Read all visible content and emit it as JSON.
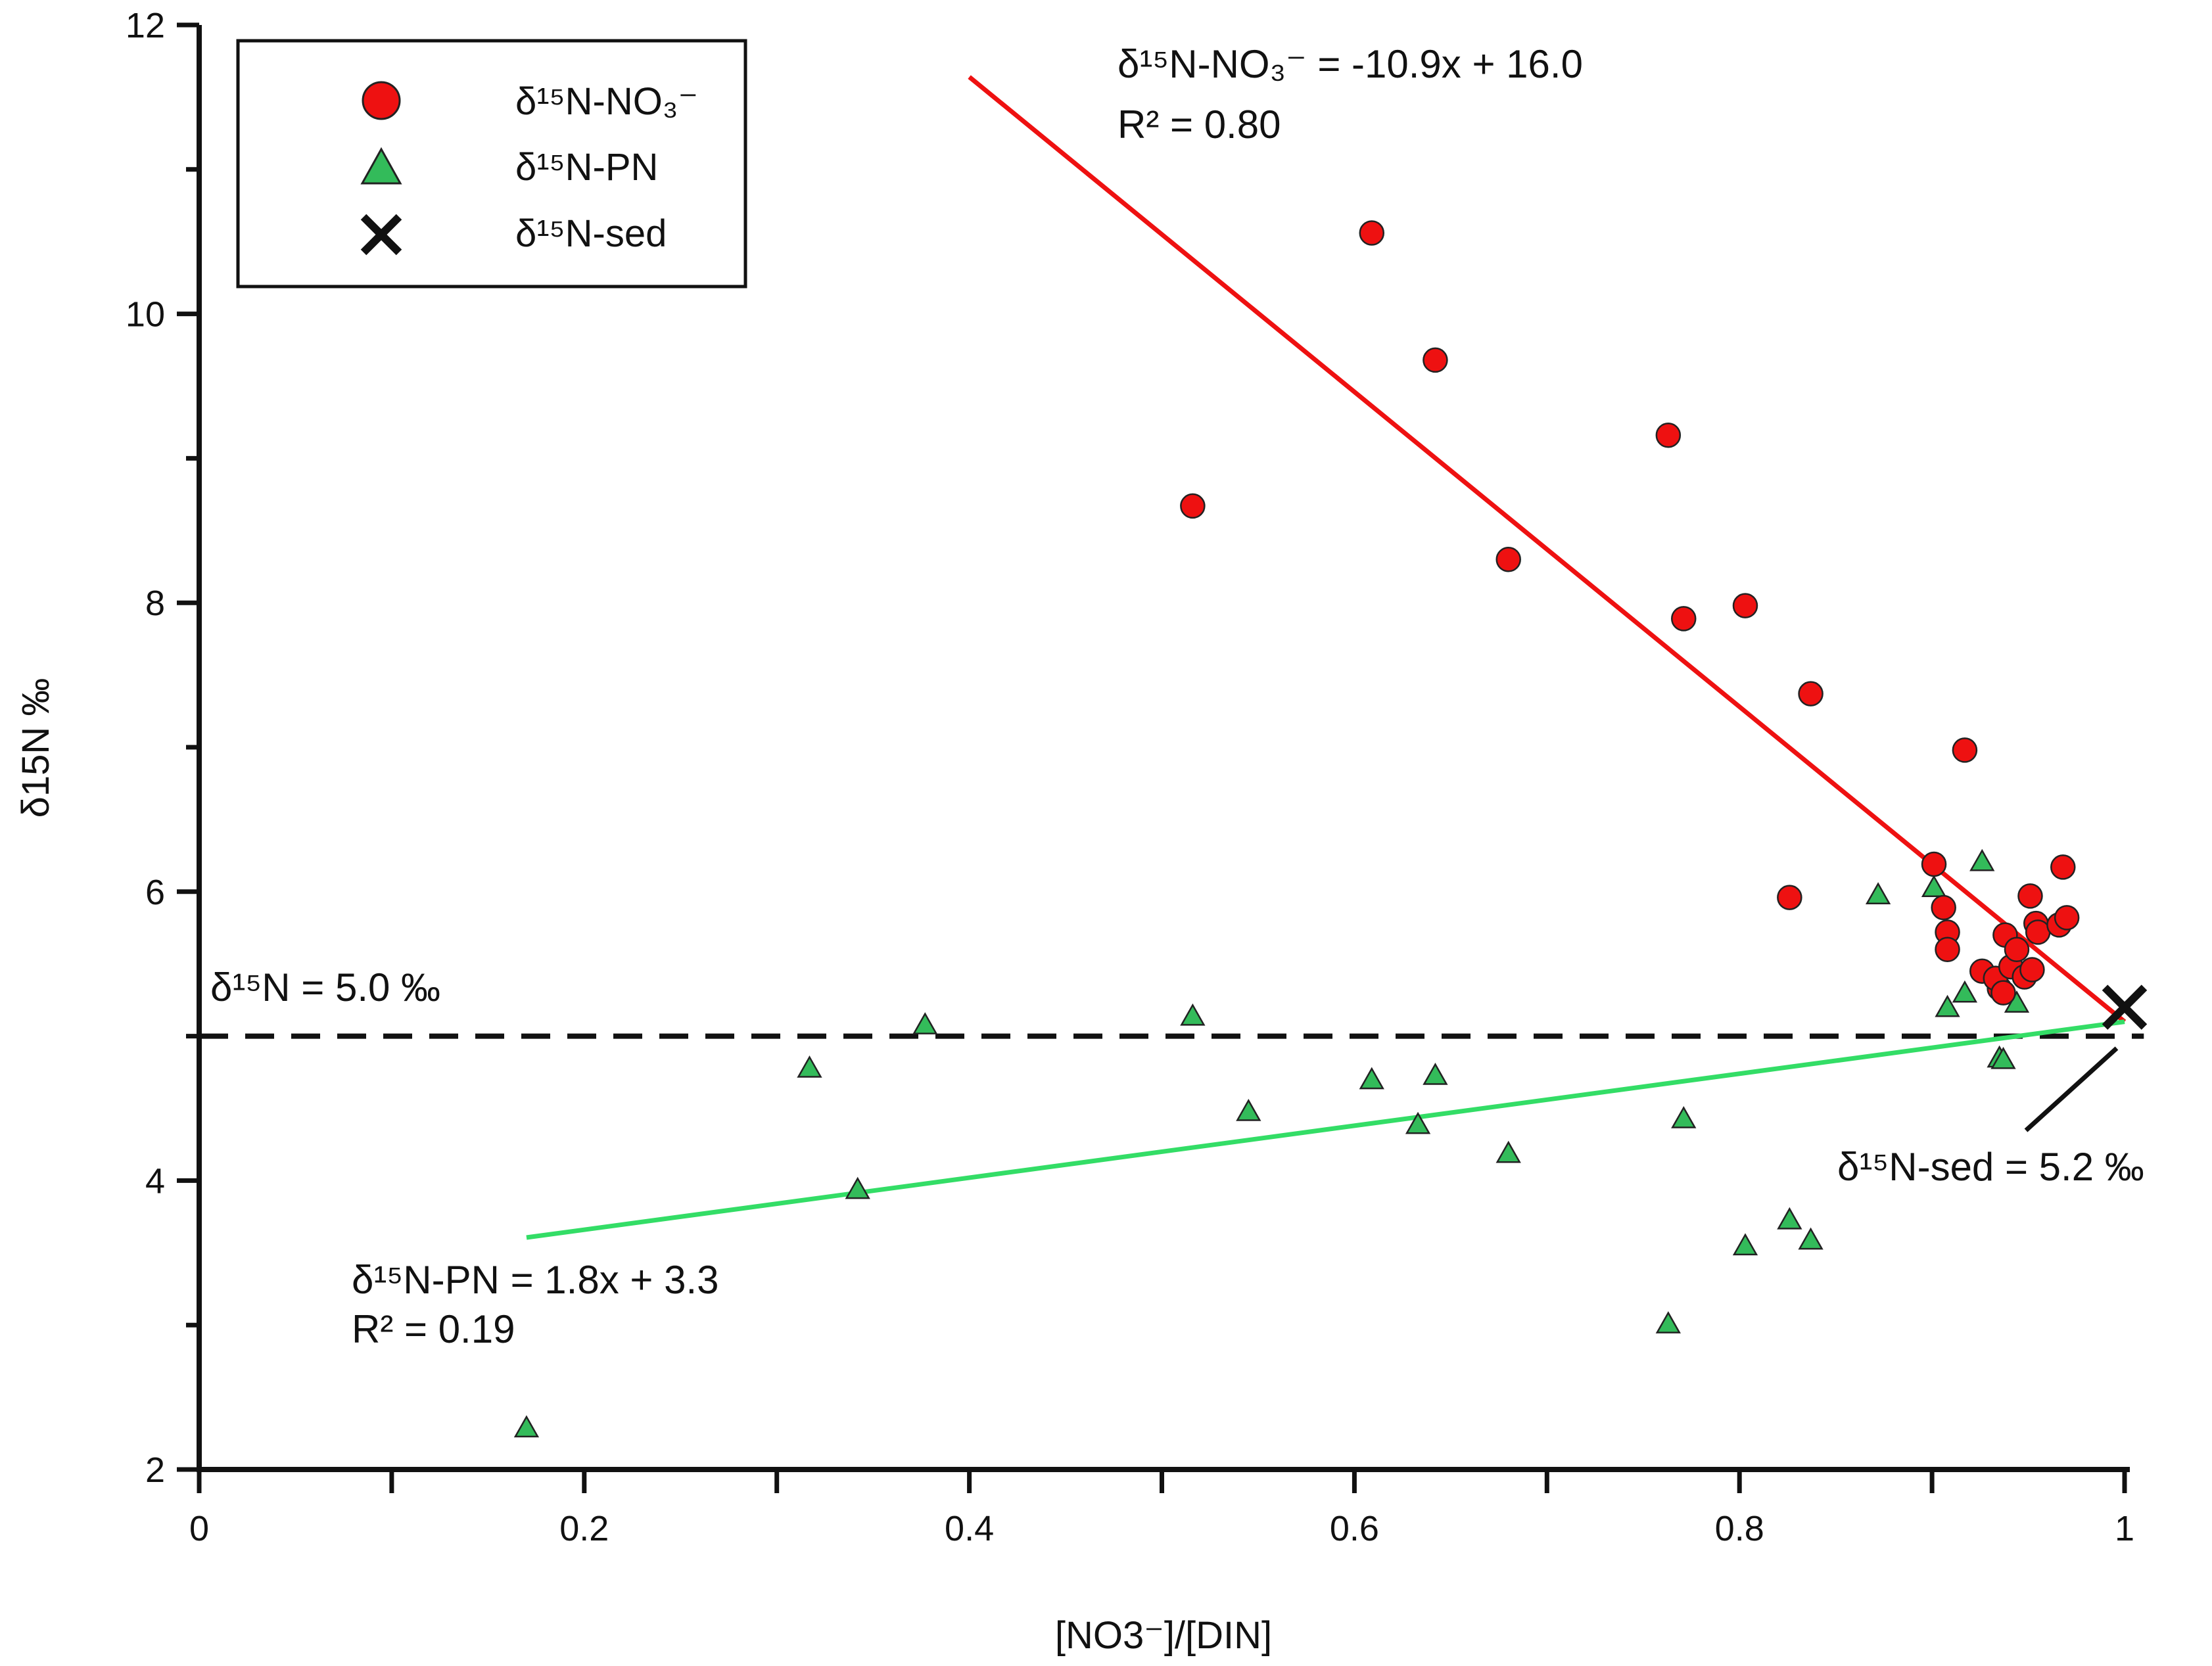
{
  "chart_data": {
    "type": "scatter",
    "title": "",
    "xlabel": "[NO3-]/[DIN]",
    "ylabel": "δ15N ‰",
    "xlim": [
      0,
      1
    ],
    "ylim": [
      2,
      12
    ],
    "x_ticks": [
      "0",
      "0.2",
      "0.4",
      "0.6",
      "0.8",
      "1"
    ],
    "y_ticks": [
      "2",
      "4",
      "6",
      "8",
      "10",
      "12"
    ],
    "grid": false,
    "legend_position": "top-left",
    "series": [
      {
        "name": "δ15N-NO3-",
        "marker": "circle",
        "color": "#ee1111",
        "x": [
          0.516,
          0.609,
          0.642,
          0.68,
          0.763,
          0.771,
          0.803,
          0.837,
          0.826,
          0.917,
          0.901,
          0.906,
          0.908,
          0.908,
          0.926,
          0.935,
          0.933,
          0.938,
          0.941,
          0.944,
          0.948,
          0.951,
          0.952,
          0.954,
          0.955,
          0.937,
          0.966,
          0.968,
          0.97
        ],
        "y": [
          8.67,
          10.56,
          9.68,
          8.3,
          9.16,
          7.89,
          7.98,
          7.37,
          5.96,
          6.98,
          6.19,
          5.89,
          5.72,
          5.6,
          5.45,
          5.33,
          5.4,
          5.7,
          5.48,
          5.6,
          5.41,
          5.97,
          5.46,
          5.78,
          5.72,
          5.3,
          5.77,
          6.17,
          5.82
        ]
      },
      {
        "name": "δ15N-PN",
        "marker": "triangle",
        "color": "#33bb5a",
        "x": [
          0.17,
          0.317,
          0.342,
          0.377,
          0.516,
          0.545,
          0.609,
          0.633,
          0.642,
          0.68,
          0.763,
          0.771,
          0.803,
          0.826,
          0.837,
          0.872,
          0.901,
          0.908,
          0.917,
          0.926,
          0.935,
          0.937,
          0.944
        ],
        "y": [
          2.28,
          4.77,
          3.93,
          5.07,
          5.13,
          4.47,
          4.69,
          4.38,
          4.72,
          4.18,
          3.0,
          4.42,
          3.54,
          3.72,
          3.58,
          5.97,
          6.02,
          5.19,
          5.29,
          6.2,
          4.84,
          4.83,
          5.22
        ]
      },
      {
        "name": "δ15N-sed",
        "marker": "x",
        "color": "#111111",
        "x": [
          1.0
        ],
        "y": [
          5.2
        ]
      }
    ],
    "fit_lines": [
      {
        "series": "δ15N-NO3-",
        "slope": -10.9,
        "intercept": 16.0,
        "x_range": [
          0.4,
          1.0
        ],
        "color": "#ee1111"
      },
      {
        "series": "δ15N-PN",
        "slope": 1.8,
        "intercept": 3.3,
        "x_range": [
          0.17,
          1.0
        ],
        "color": "#33dd66"
      }
    ],
    "reference_line": {
      "y": 5.0,
      "style": "dashed",
      "x_range": [
        0,
        1.01
      ]
    },
    "annotations": {
      "no3_eq": "δ¹⁵N-NO₃⁻ = -10.9x + 16.0",
      "no3_r2": "R² = 0.80",
      "pn_eq": "δ¹⁵N-PN = 1.8x + 3.3",
      "pn_r2": "R² = 0.19",
      "ref_label": "δ¹⁵N = 5.0 ‰",
      "sed_label": "δ¹⁵N-sed = 5.2 ‰"
    },
    "legend_labels": [
      "δ¹⁵N-NO₃⁻",
      "δ¹⁵N-PN",
      "δ¹⁵N-sed"
    ],
    "axis_title_display": {
      "x": "[NO3⁻]/[DIN]",
      "y": "δ15N ‰"
    }
  }
}
